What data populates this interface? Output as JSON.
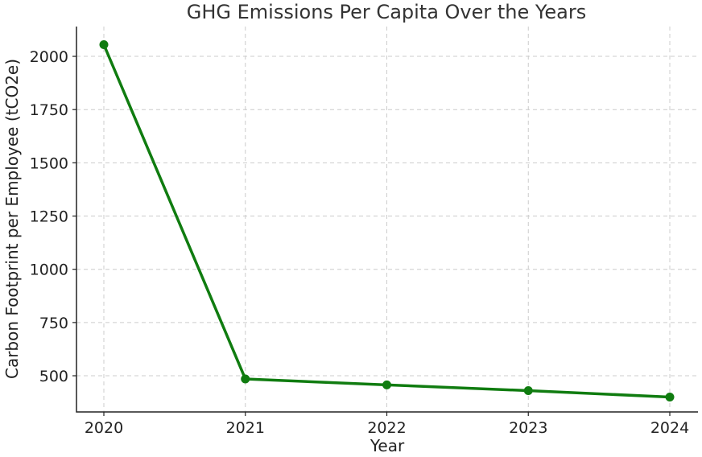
{
  "chart_data": {
    "type": "line",
    "title": "GHG Emissions Per Capita Over the Years",
    "xlabel": "Year",
    "ylabel": "Carbon Footprint per Employee (tCO2e)",
    "categories": [
      "2020",
      "2021",
      "2022",
      "2023",
      "2024"
    ],
    "series": [
      {
        "values": [
          2055,
          485,
          457,
          430,
          400
        ],
        "color": "#107c10",
        "marker": "circle"
      }
    ],
    "yticks": [
      500,
      750,
      1000,
      1250,
      1500,
      1750,
      2000
    ],
    "ylim": [
      330,
      2140
    ],
    "grid": true,
    "grid_style": "dashed",
    "legend": "none"
  }
}
